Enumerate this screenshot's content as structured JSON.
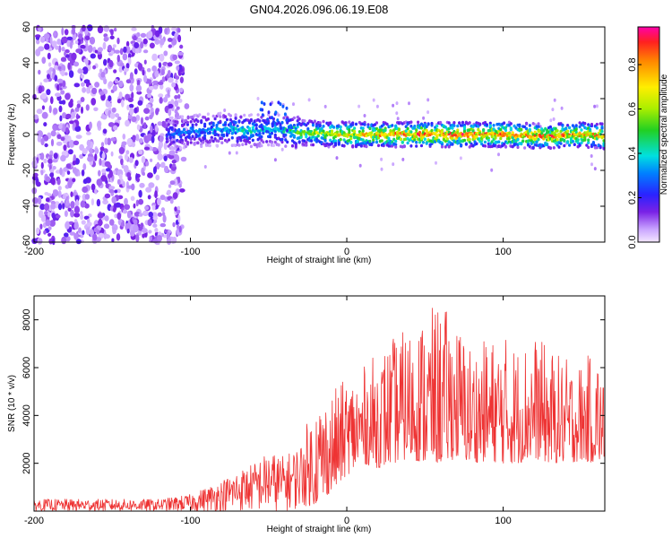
{
  "chart_data": [
    {
      "type": "heatmap",
      "title": "GN04.2026.096.06.19.E08",
      "xlabel": "Height of straight line (km)",
      "ylabel": "Frequency (Hz)",
      "xlim": [
        -200,
        165
      ],
      "ylim": [
        -60,
        60
      ],
      "x_ticks": [
        -200,
        -100,
        0,
        100
      ],
      "y_ticks": [
        -60,
        -40,
        -20,
        0,
        20,
        40,
        60
      ],
      "noise_region_x": [
        -200,
        -105
      ],
      "signal_track": {
        "x": [
          -115,
          -100,
          -80,
          -60,
          -45,
          -30,
          0,
          50,
          100,
          130,
          150,
          165
        ],
        "center_freq_hz": [
          0,
          2,
          3,
          2,
          3,
          1,
          0,
          0,
          0,
          -1,
          0,
          -1
        ],
        "peak_normalized_amplitude": [
          0.3,
          0.35,
          0.4,
          0.45,
          0.4,
          0.6,
          0.8,
          0.95,
          0.9,
          0.9,
          0.85,
          0.9
        ]
      },
      "colorbar": {
        "label": "Normalized spectral amplitude",
        "range": [
          0,
          0.97
        ],
        "ticks": [
          "0.0",
          "0.2",
          "0.4",
          "0.6",
          "0.8"
        ]
      }
    },
    {
      "type": "line",
      "xlabel": "Height of straight line (km)",
      "ylabel": "SNR (10 * v/v)",
      "xlim": [
        -200,
        165
      ],
      "ylim": [
        0,
        9000
      ],
      "x_ticks": [
        -200,
        -100,
        0,
        100
      ],
      "y_ticks": [
        2000,
        4000,
        6000,
        8000
      ],
      "color": "#ee3333",
      "envelope": {
        "x": [
          -200,
          -120,
          -100,
          -90,
          -80,
          -70,
          -60,
          -50,
          -40,
          -30,
          -20,
          -10,
          0,
          10,
          20,
          30,
          40,
          50,
          60,
          70,
          80,
          90,
          100,
          110,
          120,
          130,
          140,
          150,
          160,
          165
        ],
        "low": [
          0,
          0,
          0,
          0,
          0,
          0,
          0,
          0,
          0,
          100,
          300,
          800,
          1500,
          2000,
          1800,
          2000,
          2200,
          2000,
          2000,
          2200,
          2000,
          2100,
          2000,
          2000,
          2200,
          2000,
          2000,
          2100,
          2000,
          2200
        ],
        "high": [
          500,
          500,
          700,
          1000,
          1300,
          1700,
          2000,
          2500,
          2300,
          2800,
          4800,
          5000,
          5600,
          6000,
          6700,
          7300,
          7700,
          8300,
          8700,
          8000,
          7000,
          7200,
          7400,
          7000,
          7400,
          6800,
          6400,
          6300,
          6800,
          5200
        ]
      }
    }
  ]
}
